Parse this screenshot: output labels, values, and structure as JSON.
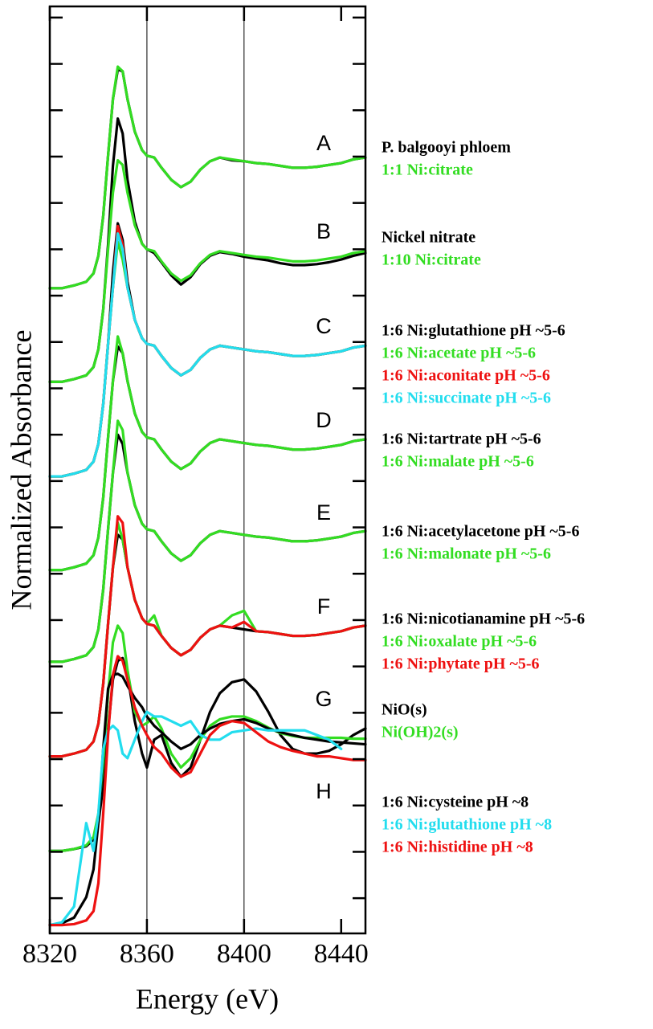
{
  "chart_data": {
    "type": "line",
    "x_label": "Energy (eV)",
    "y_label": "Normalized Absorbance",
    "xlim": [
      8320,
      8450
    ],
    "xticks": [
      8320,
      8360,
      8400,
      8440
    ],
    "ylim": [
      0.12,
      10.12
    ],
    "yticks": [
      0.5,
      1,
      1.5,
      2,
      2.5,
      3,
      3.5,
      4,
      4.5,
      5,
      5.5,
      6,
      6.5,
      7,
      7.5,
      8,
      8.5,
      9,
      9.5,
      10
    ],
    "reference_lines": [
      8360,
      8400
    ],
    "x": [
      8320,
      8325,
      8330,
      8335,
      8338,
      8340,
      8342,
      8344,
      8346,
      8348,
      8350,
      8352,
      8355,
      8358,
      8360,
      8363,
      8366,
      8370,
      8374,
      8378,
      8382,
      8386,
      8390,
      8395,
      8400,
      8405,
      8410,
      8415,
      8420,
      8425,
      8430,
      8435,
      8440,
      8445,
      8450
    ],
    "panels": [
      {
        "label": "A",
        "series": [
          {
            "name": "P. balgooyi phloem",
            "color": "#000000",
            "values": [
              7.08,
              7.08,
              7.11,
              7.15,
              7.24,
              7.43,
              7.86,
              8.51,
              9.12,
              9.44,
              9.42,
              9.12,
              8.77,
              8.57,
              8.51,
              8.49,
              8.38,
              8.25,
              8.17,
              8.23,
              8.36,
              8.45,
              8.49,
              8.46,
              8.45,
              8.43,
              8.42,
              8.4,
              8.38,
              8.38,
              8.39,
              8.41,
              8.43,
              8.47,
              8.49
            ]
          },
          {
            "name": "1:1 Ni:citrate",
            "color": "#33dd22",
            "values": [
              7.08,
              7.08,
              7.11,
              7.15,
              7.24,
              7.43,
              7.86,
              8.51,
              9.12,
              9.47,
              9.42,
              9.12,
              8.77,
              8.57,
              8.51,
              8.49,
              8.38,
              8.25,
              8.17,
              8.23,
              8.36,
              8.45,
              8.49,
              8.47,
              8.45,
              8.43,
              8.42,
              8.4,
              8.38,
              8.38,
              8.39,
              8.41,
              8.43,
              8.47,
              8.49
            ]
          }
        ]
      },
      {
        "label": "B",
        "series": [
          {
            "name": "Nickel nitrate",
            "color": "#000000",
            "values": [
              6.07,
              6.07,
              6.1,
              6.14,
              6.23,
              6.42,
              6.85,
              7.55,
              8.4,
              8.91,
              8.75,
              8.25,
              7.8,
              7.56,
              7.5,
              7.46,
              7.36,
              7.22,
              7.12,
              7.2,
              7.34,
              7.43,
              7.47,
              7.45,
              7.42,
              7.4,
              7.38,
              7.35,
              7.33,
              7.33,
              7.34,
              7.36,
              7.39,
              7.43,
              7.46
            ]
          },
          {
            "name": "1:10 Ni:citrate",
            "color": "#33dd22",
            "values": [
              6.07,
              6.07,
              6.1,
              6.14,
              6.23,
              6.42,
              6.85,
              7.5,
              8.11,
              8.46,
              8.41,
              8.11,
              7.76,
              7.56,
              7.5,
              7.48,
              7.37,
              7.24,
              7.16,
              7.22,
              7.35,
              7.44,
              7.48,
              7.46,
              7.44,
              7.42,
              7.41,
              7.39,
              7.37,
              7.37,
              7.38,
              7.4,
              7.42,
              7.46,
              7.48
            ]
          }
        ]
      },
      {
        "label": "C",
        "series": [
          {
            "name": "1:6 Ni:glutathione pH ~5-6",
            "color": "#000000",
            "values": [
              5.05,
              5.05,
              5.08,
              5.12,
              5.21,
              5.4,
              5.83,
              6.48,
              7.25,
              7.78,
              7.6,
              7.15,
              6.74,
              6.54,
              6.48,
              6.46,
              6.35,
              6.22,
              6.14,
              6.2,
              6.33,
              6.42,
              6.46,
              6.44,
              6.42,
              6.4,
              6.39,
              6.37,
              6.35,
              6.35,
              6.36,
              6.38,
              6.4,
              6.44,
              6.46
            ]
          },
          {
            "name": "1:6 Ni:acetate pH ~5-6",
            "color": "#33dd22",
            "values": [
              5.05,
              5.05,
              5.08,
              5.12,
              5.21,
              5.4,
              5.83,
              6.48,
              7.09,
              7.58,
              7.39,
              7.09,
              6.74,
              6.54,
              6.48,
              6.46,
              6.35,
              6.22,
              6.14,
              6.2,
              6.33,
              6.42,
              6.46,
              6.44,
              6.42,
              6.4,
              6.39,
              6.37,
              6.35,
              6.35,
              6.36,
              6.38,
              6.4,
              6.44,
              6.46
            ]
          },
          {
            "name": "1:6 Ni:aconitate pH ~5-6",
            "color": "#ee1111",
            "values": [
              5.05,
              5.05,
              5.08,
              5.12,
              5.21,
              5.4,
              5.83,
              6.48,
              7.09,
              7.75,
              7.55,
              7.09,
              6.74,
              6.54,
              6.48,
              6.46,
              6.35,
              6.22,
              6.14,
              6.2,
              6.33,
              6.42,
              6.46,
              6.44,
              6.42,
              6.4,
              6.39,
              6.37,
              6.35,
              6.35,
              6.36,
              6.38,
              6.4,
              6.44,
              6.46
            ]
          },
          {
            "name": "1:6 Ni:succinate pH ~5-6",
            "color": "#22ddee",
            "values": [
              5.05,
              5.05,
              5.08,
              5.12,
              5.21,
              5.4,
              5.83,
              6.48,
              7.09,
              7.67,
              7.5,
              7.09,
              6.74,
              6.54,
              6.48,
              6.46,
              6.35,
              6.22,
              6.14,
              6.2,
              6.33,
              6.42,
              6.46,
              6.44,
              6.42,
              6.4,
              6.39,
              6.37,
              6.35,
              6.35,
              6.36,
              6.38,
              6.4,
              6.44,
              6.46
            ]
          }
        ]
      },
      {
        "label": "D",
        "series": [
          {
            "name": "1:6 Ni:tartrate pH ~5-6",
            "color": "#000000",
            "values": [
              4.04,
              4.04,
              4.07,
              4.11,
              4.2,
              4.39,
              4.82,
              5.47,
              6.08,
              6.45,
              6.38,
              6.08,
              5.73,
              5.53,
              5.47,
              5.45,
              5.34,
              5.21,
              5.13,
              5.19,
              5.32,
              5.41,
              5.45,
              5.43,
              5.41,
              5.39,
              5.38,
              5.36,
              5.34,
              5.34,
              5.35,
              5.37,
              5.39,
              5.43,
              5.45
            ]
          },
          {
            "name": "1:6 Ni:malate pH ~5-6",
            "color": "#33dd22",
            "values": [
              4.04,
              4.04,
              4.07,
              4.11,
              4.2,
              4.39,
              4.82,
              5.47,
              6.08,
              6.56,
              6.38,
              6.08,
              5.73,
              5.53,
              5.47,
              5.45,
              5.34,
              5.21,
              5.13,
              5.19,
              5.32,
              5.41,
              5.45,
              5.43,
              5.41,
              5.39,
              5.38,
              5.36,
              5.34,
              5.34,
              5.35,
              5.37,
              5.39,
              5.43,
              5.45
            ]
          }
        ]
      },
      {
        "label": "E",
        "series": [
          {
            "name": "1:6 Ni:acetylacetone pH ~5-6",
            "color": "#000000",
            "values": [
              3.05,
              3.05,
              3.08,
              3.12,
              3.21,
              3.4,
              3.83,
              4.48,
              5.09,
              5.5,
              5.4,
              5.09,
              4.74,
              4.54,
              4.48,
              4.46,
              4.35,
              4.22,
              4.14,
              4.2,
              4.33,
              4.42,
              4.46,
              4.44,
              4.42,
              4.4,
              4.39,
              4.37,
              4.35,
              4.35,
              4.36,
              4.38,
              4.4,
              4.44,
              4.46
            ]
          },
          {
            "name": "1:6 Ni:malonate pH ~5-6",
            "color": "#33dd22",
            "values": [
              3.05,
              3.05,
              3.08,
              3.12,
              3.21,
              3.4,
              3.83,
              4.48,
              5.09,
              5.65,
              5.55,
              5.09,
              4.74,
              4.54,
              4.48,
              4.46,
              4.35,
              4.22,
              4.14,
              4.2,
              4.33,
              4.42,
              4.46,
              4.44,
              4.42,
              4.4,
              4.39,
              4.37,
              4.35,
              4.35,
              4.36,
              4.38,
              4.4,
              4.44,
              4.46
            ]
          }
        ]
      },
      {
        "label": "F",
        "series": [
          {
            "name": "1:6 Ni:nicotianamine pH ~5-6",
            "color": "#000000",
            "values": [
              2.03,
              2.03,
              2.06,
              2.1,
              2.19,
              2.38,
              2.81,
              3.46,
              4.07,
              4.42,
              4.37,
              4.07,
              3.72,
              3.52,
              3.46,
              3.44,
              3.33,
              3.2,
              3.12,
              3.18,
              3.31,
              3.4,
              3.44,
              3.42,
              3.4,
              3.38,
              3.37,
              3.35,
              3.33,
              3.33,
              3.34,
              3.36,
              3.38,
              3.42,
              3.44
            ]
          },
          {
            "name": "1:6 Ni:oxalate pH ~5-6",
            "color": "#33dd22",
            "values": [
              2.03,
              2.03,
              2.06,
              2.1,
              2.19,
              2.38,
              2.81,
              3.46,
              4.07,
              4.55,
              4.37,
              4.07,
              3.72,
              3.52,
              3.46,
              3.55,
              3.33,
              3.2,
              3.12,
              3.18,
              3.31,
              3.4,
              3.44,
              3.55,
              3.6,
              3.38,
              3.37,
              3.35,
              3.33,
              3.33,
              3.34,
              3.36,
              3.38,
              3.42,
              3.44
            ]
          },
          {
            "name": "1:6 Ni:phytate pH ~5-6",
            "color": "#ee1111",
            "values": [
              2.03,
              2.03,
              2.06,
              2.1,
              2.19,
              2.38,
              2.81,
              3.46,
              4.07,
              4.62,
              4.55,
              4.07,
              3.72,
              3.52,
              3.46,
              3.44,
              3.33,
              3.2,
              3.12,
              3.18,
              3.31,
              3.4,
              3.44,
              3.42,
              3.48,
              3.38,
              3.37,
              3.35,
              3.33,
              3.33,
              3.34,
              3.36,
              3.38,
              3.42,
              3.44
            ]
          }
        ]
      },
      {
        "label": "G",
        "series": [
          {
            "name": "NiO(s)",
            "color": "#000000",
            "values": [
              1.01,
              1.01,
              1.03,
              1.06,
              1.13,
              1.31,
              1.71,
              2.31,
              2.86,
              3.06,
              3.09,
              2.91,
              2.41,
              2.06,
              1.91,
              2.21,
              2.26,
              1.96,
              1.81,
              1.91,
              2.21,
              2.51,
              2.71,
              2.83,
              2.86,
              2.73,
              2.51,
              2.26,
              2.11,
              2.06,
              2.06,
              2.09,
              2.16,
              2.26,
              2.33
            ]
          },
          {
            "name": "Ni(OH)2(s)",
            "color": "#33dd22",
            "values": [
              1.01,
              1.01,
              1.03,
              1.07,
              1.16,
              1.41,
              1.96,
              2.71,
              3.26,
              3.44,
              3.36,
              2.96,
              2.51,
              2.36,
              2.39,
              2.46,
              2.33,
              2.06,
              1.91,
              2.01,
              2.21,
              2.36,
              2.43,
              2.46,
              2.46,
              2.41,
              2.34,
              2.28,
              2.25,
              2.23,
              2.23,
              2.23,
              2.23,
              2.22,
              2.22
            ]
          }
        ]
      },
      {
        "label": "H",
        "series": [
          {
            "name": "1:6 Ni:cysteine pH ~8",
            "color": "#000000",
            "values": [
              0.21,
              0.23,
              0.29,
              0.51,
              0.81,
              1.31,
              2.11,
              2.76,
              2.91,
              2.92,
              2.89,
              2.79,
              2.66,
              2.56,
              2.46,
              2.36,
              2.29,
              2.19,
              2.11,
              2.16,
              2.26,
              2.33,
              2.38,
              2.41,
              2.43,
              2.39,
              2.33,
              2.29,
              2.26,
              2.23,
              2.21,
              2.19,
              2.18,
              2.17,
              2.16
            ]
          },
          {
            "name": "1:6 Ni:glutathione pH ~8",
            "color": "#22ddee",
            "values": [
              0.21,
              0.24,
              0.41,
              1.31,
              1.01,
              1.41,
              2.11,
              2.31,
              2.36,
              2.31,
              2.06,
              2.01,
              2.21,
              2.41,
              2.51,
              2.46,
              2.46,
              2.41,
              2.36,
              2.41,
              2.26,
              2.21,
              2.21,
              2.29,
              2.31,
              2.33,
              2.31,
              2.31,
              2.31,
              2.31,
              2.26,
              2.21,
              2.11,
              null,
              null
            ]
          },
          {
            "name": "1:6 Ni:histidine pH ~8",
            "color": "#ee1111",
            "values": [
              0.21,
              0.21,
              0.22,
              0.26,
              0.36,
              0.66,
              1.41,
              2.26,
              2.91,
              3.11,
              3.06,
              2.86,
              2.56,
              2.36,
              2.26,
              2.13,
              2.06,
              1.91,
              1.81,
              1.86,
              2.06,
              2.26,
              2.36,
              2.41,
              2.39,
              2.29,
              2.19,
              2.13,
              2.09,
              2.06,
              2.03,
              2.03,
              2.01,
              1.99,
              1.99
            ]
          }
        ]
      }
    ]
  }
}
